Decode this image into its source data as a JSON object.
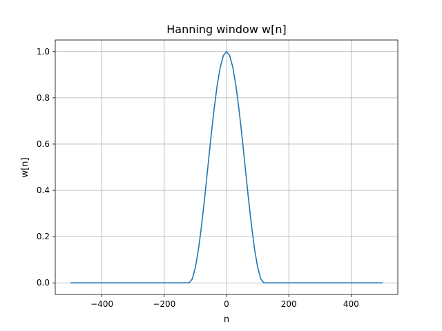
{
  "chart_data": {
    "type": "line",
    "title": "Hanning window w[n]",
    "xlabel": "n",
    "ylabel": "w[n]",
    "xlim": [
      -550,
      550
    ],
    "ylim": [
      -0.05,
      1.05
    ],
    "xticks": [
      -400,
      -200,
      0,
      200,
      400
    ],
    "xtick_labels": [
      "−400",
      "−200",
      "0",
      "200",
      "400"
    ],
    "yticks": [
      0.0,
      0.2,
      0.4,
      0.6,
      0.8,
      1.0
    ],
    "ytick_labels": [
      "0.0",
      "0.2",
      "0.4",
      "0.6",
      "0.8",
      "1.0"
    ],
    "grid": true,
    "series": [
      {
        "color": "#1f77b4",
        "x": [
          -500,
          -120,
          -110,
          -100,
          -90,
          -80,
          -70,
          -60,
          -50,
          -40,
          -30,
          -20,
          -10,
          0,
          10,
          20,
          30,
          40,
          50,
          60,
          70,
          80,
          90,
          100,
          110,
          120,
          500
        ],
        "y": [
          0,
          0,
          0.017,
          0.067,
          0.146,
          0.25,
          0.37,
          0.5,
          0.63,
          0.75,
          0.854,
          0.933,
          0.983,
          1.0,
          0.983,
          0.933,
          0.854,
          0.75,
          0.63,
          0.5,
          0.37,
          0.25,
          0.146,
          0.067,
          0.017,
          0,
          0
        ]
      }
    ]
  }
}
